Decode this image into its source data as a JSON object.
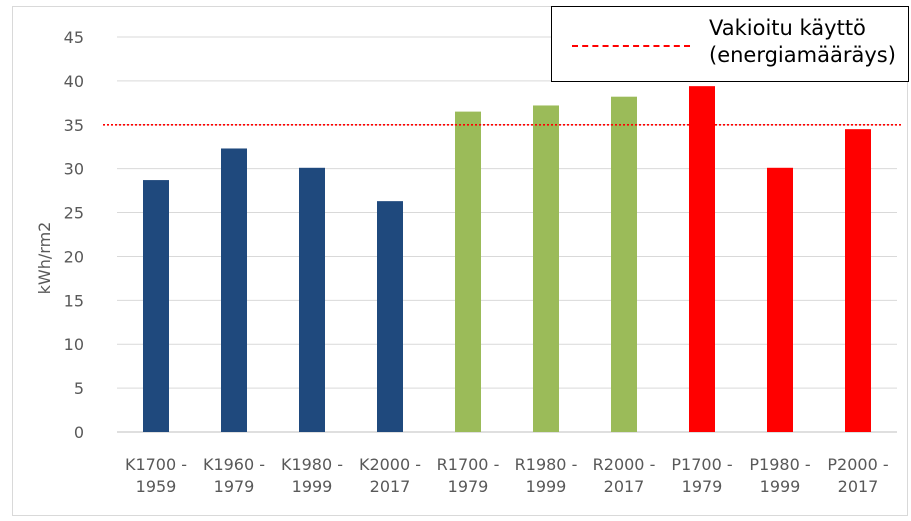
{
  "chart_data": {
    "type": "bar",
    "categories": [
      [
        "K1700 -",
        "1959"
      ],
      [
        "K1960 -",
        "1979"
      ],
      [
        "K1980 -",
        "1999"
      ],
      [
        "K2000 -",
        "2017"
      ],
      [
        "R1700 -",
        "1979"
      ],
      [
        "R1980 -",
        "1999"
      ],
      [
        "R2000 -",
        "2017"
      ],
      [
        "P1700 -",
        "1979"
      ],
      [
        "P1980 -",
        "1999"
      ],
      [
        "P2000 -",
        "2017"
      ]
    ],
    "values": [
      28.7,
      32.3,
      30.1,
      26.3,
      36.5,
      37.2,
      38.2,
      39.4,
      30.1,
      34.5
    ],
    "bar_colors": [
      "#1f497d",
      "#1f497d",
      "#1f497d",
      "#1f497d",
      "#9bbb59",
      "#9bbb59",
      "#9bbb59",
      "#ff0000",
      "#ff0000",
      "#ff0000"
    ],
    "ylabel": "kWh/rm2",
    "xlabel": "",
    "title": "",
    "ylim": [
      0,
      45
    ],
    "yticks": [
      0,
      5,
      10,
      15,
      20,
      25,
      30,
      35,
      40,
      45
    ],
    "grid": true,
    "reference_line": {
      "value": 35,
      "color": "#ff0000",
      "style": "dashed",
      "label_lines": [
        "Vakioitu käyttö",
        "(energiamääräys)"
      ]
    },
    "legend_position": "top-right"
  }
}
